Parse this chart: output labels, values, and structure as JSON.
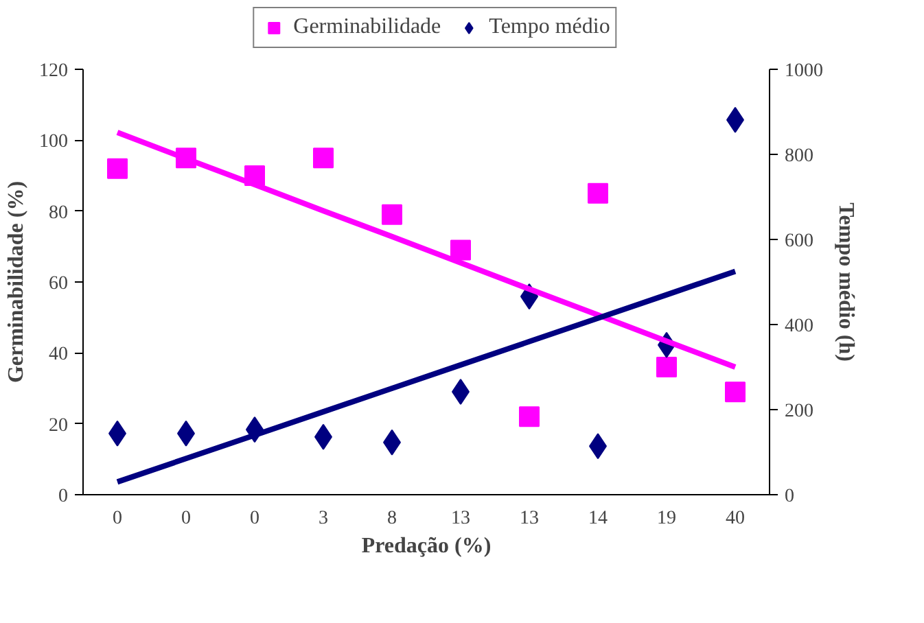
{
  "chart_data": {
    "type": "scatter",
    "xlabel": "Predação (%)",
    "ylabel": "Germinabilidade (%)",
    "y2label": "Tempo médio (h)",
    "categories": [
      "0",
      "0",
      "0",
      "3",
      "8",
      "13",
      "13",
      "14",
      "19",
      "40"
    ],
    "series": [
      {
        "name": "Germinabilidade",
        "color": "#ff00ff",
        "marker": "square",
        "values": [
          92,
          95,
          90,
          95,
          79,
          69,
          22,
          85,
          36,
          29
        ]
      },
      {
        "name": "Tempo médio",
        "color": "#000080",
        "marker": "diamond",
        "axis": "y2",
        "values": [
          144,
          144,
          153,
          136,
          123,
          242,
          466,
          114,
          352,
          881
        ]
      },
      {
        "type": "line",
        "color": "#ff00ff",
        "marker": "none",
        "values": [
          102.2,
          94.8,
          87.5,
          80.1,
          72.8,
          65.4,
          58.0,
          50.7,
          43.3,
          36.0
        ]
      },
      {
        "type": "line",
        "color": "#000080",
        "marker": "none",
        "axis": "y2",
        "values": [
          30,
          85,
          140,
          195,
          250,
          305,
          360,
          415,
          470,
          525
        ]
      }
    ],
    "ylim": [
      0,
      120
    ],
    "yticks": [
      0,
      20,
      40,
      60,
      80,
      100,
      120
    ],
    "y2lim": [
      0,
      1000
    ],
    "y2ticks": [
      0,
      200,
      400,
      600,
      800,
      1000
    ],
    "grid": false,
    "legend": "top"
  }
}
